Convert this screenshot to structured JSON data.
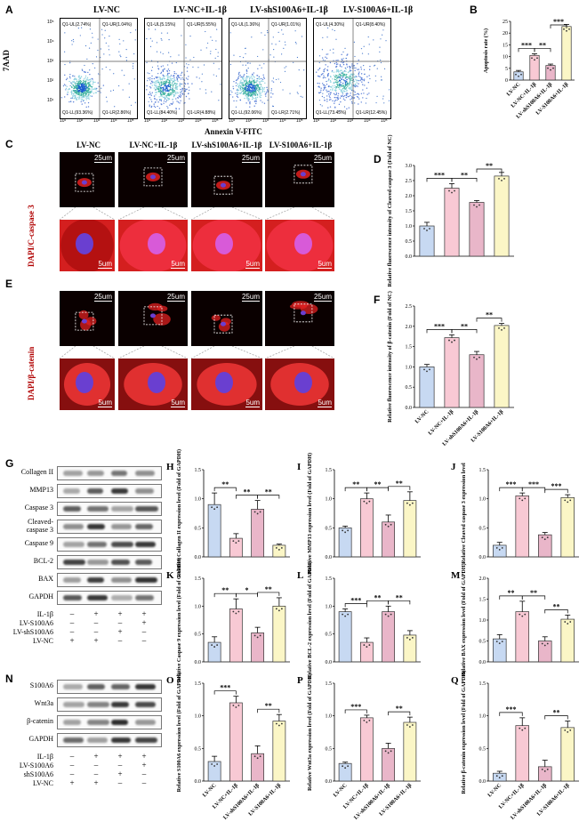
{
  "panel_letters": [
    "A",
    "B",
    "C",
    "D",
    "E",
    "F",
    "G",
    "H",
    "I",
    "J",
    "K",
    "L",
    "M",
    "N",
    "O",
    "P",
    "Q"
  ],
  "groups": [
    "LV-NC",
    "LV-NC+IL-1β",
    "LV-shS100A6+IL-1β",
    "LV-S100A6+IL-1β"
  ],
  "flow": {
    "y_axis": "7AAD",
    "x_axis": "Annexin V-FITC",
    "ticks": [
      "10⁵",
      "10⁴",
      "10³",
      "10²",
      "10¹"
    ],
    "xticks": [
      "10¹",
      "10²",
      "10³",
      "10⁴",
      "10⁵"
    ],
    "quadrants": [
      {
        "ul": "Q1-UL(2.74%)",
        "ur": "Q1-UR(1.04%)",
        "ll": "Q1-LL(93.36%)",
        "lr": "Q1-LR(2.86%)"
      },
      {
        "ul": "Q1-UL(5.15%)",
        "ur": "Q1-UR(5.55%)",
        "ll": "Q1-LL(84.40%)",
        "lr": "Q1-LR(4.88%)"
      },
      {
        "ul": "Q1-UL(1.36%)",
        "ur": "Q1-UR(1.01%)",
        "ll": "Q1-LL(92.06%)",
        "lr": "Q1-LR(2.71%)"
      },
      {
        "ul": "Q1-UL(4.30%)",
        "ur": "Q1-UR(8.40%)",
        "ll": "Q1-LL(73.45%)",
        "lr": "Q1-LR(12.45%)"
      }
    ]
  },
  "micro": {
    "C_side": "DAPI/C-caspase 3",
    "E_side": "DAPI/β-catenin",
    "scale_top": "25um",
    "scale_bottom": "5um",
    "E_groups": [
      "LV-NC",
      "LV-NC+IL-1β",
      "LV-shS100A6+IL-1β",
      "LV-S100A6+IL-1β"
    ]
  },
  "western_G": {
    "labels": [
      "Collagen II",
      "MMP13",
      "Caspase 3",
      "Cleaved-\ncaspase 3",
      "Caspase 9",
      "BCL-2",
      "BAX",
      "GAPDH"
    ],
    "treat_rows": [
      {
        "name": "IL-1β",
        "signs": [
          "–",
          "+",
          "+",
          "+"
        ]
      },
      {
        "name": "LV-S100A6",
        "signs": [
          "–",
          "–",
          "–",
          "+"
        ]
      },
      {
        "name": "LV-shS100A6",
        "signs": [
          "–",
          "–",
          "+",
          "–"
        ]
      },
      {
        "name": "LV-NC",
        "signs": [
          "+",
          "+",
          "–",
          "–"
        ]
      }
    ]
  },
  "western_N": {
    "labels": [
      "S100A6",
      "Wnt3a",
      "β-catenin",
      "GAPDH"
    ],
    "treat_rows": [
      {
        "name": "IL-1β",
        "signs": [
          "–",
          "+",
          "+",
          "+"
        ]
      },
      {
        "name": "LV-S100A6",
        "signs": [
          "–",
          "–",
          "–",
          "+"
        ]
      },
      {
        "name": "shS100A6",
        "signs": [
          "–",
          "–",
          "+",
          "–"
        ]
      },
      {
        "name": "LV-NC",
        "signs": [
          "+",
          "+",
          "–",
          "–"
        ]
      }
    ]
  },
  "colors": {
    "LV-NC": "#c7d9f2",
    "LV-NC+IL-1β": "#f8c9d4",
    "LV-shS100A6+IL-1β": "#e9b6c9",
    "LV-S100A6+IL-1β": "#fbf6c6",
    "micro_bg": "#0a0000",
    "micro_cell": "#e02020",
    "micro_nucleus": "#6a3fd0"
  },
  "chart_data": [
    {
      "panel": "B",
      "type": "bar",
      "categories": [
        "LV-NC",
        "LV-NC+IL-1β",
        "LV-shS100A6+IL-1β",
        "LV-S100A6+IL-1β"
      ],
      "values": [
        3.5,
        10.5,
        6.2,
        22.8
      ],
      "errors": [
        0.6,
        0.7,
        0.6,
        0.9
      ],
      "ylabel": "Apoptosis rate (%)",
      "ylim": [
        0,
        25
      ],
      "yticks": [
        0,
        5,
        10,
        15,
        20,
        25
      ],
      "sig": [
        [
          "***",
          0,
          1
        ],
        [
          "**",
          1,
          2
        ],
        [
          "***",
          2,
          3
        ]
      ],
      "show_xlabels": true
    },
    {
      "panel": "D",
      "type": "bar",
      "categories": [
        "LV-NC",
        "LV-NC+IL-1β",
        "LV-shS100A6+IL-1β",
        "LV-S100A6+IL-1β"
      ],
      "values": [
        1.0,
        2.25,
        1.78,
        2.65
      ],
      "errors": [
        0.12,
        0.15,
        0.06,
        0.12
      ],
      "ylabel": "Relative fluorescence intensity of Cleaved-caspase 3 (Fold of NC)",
      "ylim": [
        0,
        3.0
      ],
      "yticks": [
        0,
        0.5,
        1.0,
        1.5,
        2.0,
        2.5,
        3.0
      ],
      "sig": [
        [
          "***",
          0,
          1
        ],
        [
          "**",
          1,
          2
        ],
        [
          "**",
          2,
          3
        ]
      ],
      "show_xlabels": false
    },
    {
      "panel": "F",
      "type": "bar",
      "categories": [
        "LV-NC",
        "LV-NC+IL-1β",
        "LV-shS100A6+IL-1β",
        "LV-S100A6+IL-1β"
      ],
      "values": [
        1.0,
        1.72,
        1.3,
        2.02
      ],
      "errors": [
        0.06,
        0.07,
        0.08,
        0.05
      ],
      "ylabel": "Relative fluorescence intensity of β-catenin (Fold of NC)",
      "ylim": [
        0,
        2.5
      ],
      "yticks": [
        0,
        0.5,
        1.0,
        1.5,
        2.0,
        2.5
      ],
      "sig": [
        [
          "***",
          0,
          1
        ],
        [
          "**",
          1,
          2
        ],
        [
          "**",
          2,
          3
        ]
      ],
      "show_xlabels": true
    },
    {
      "panel": "H",
      "type": "bar",
      "categories": [
        "LV-NC",
        "LV-NC+IL-1β",
        "LV-shS100A6+IL-1β",
        "LV-S100A6+IL-1β"
      ],
      "values": [
        0.9,
        0.32,
        0.82,
        0.2
      ],
      "errors": [
        0.2,
        0.08,
        0.15,
        0.02
      ],
      "ylabel": "Relative Collagen II expression level (Fold of GAPDH)",
      "ylim": [
        0,
        1.5
      ],
      "yticks": [
        0.0,
        0.5,
        1.0,
        1.5
      ],
      "sig": [
        [
          "**",
          0,
          1
        ],
        [
          "**",
          1,
          2
        ],
        [
          "**",
          2,
          3
        ]
      ],
      "show_xlabels": false
    },
    {
      "panel": "I",
      "type": "bar",
      "categories": [
        "LV-NC",
        "LV-NC+IL-1β",
        "LV-shS100A6+IL-1β",
        "LV-S100A6+IL-1β"
      ],
      "values": [
        0.5,
        1.0,
        0.6,
        0.97
      ],
      "errors": [
        0.03,
        0.1,
        0.12,
        0.15
      ],
      "ylabel": "Relative MMP13 expression level (Fold of GAPDH)",
      "ylim": [
        0,
        1.5
      ],
      "yticks": [
        0.0,
        0.5,
        1.0,
        1.5
      ],
      "sig": [
        [
          "**",
          0,
          1
        ],
        [
          "**",
          1,
          2
        ],
        [
          "**",
          2,
          3
        ]
      ],
      "show_xlabels": false
    },
    {
      "panel": "J",
      "type": "bar",
      "categories": [
        "LV-NC",
        "LV-NC+IL-1β",
        "LV-shS100A6+IL-1β",
        "LV-S100A6+IL-1β"
      ],
      "values": [
        0.2,
        1.05,
        0.38,
        1.02
      ],
      "errors": [
        0.05,
        0.05,
        0.04,
        0.05
      ],
      "ylabel": "Relative Cleaved caspase 3 expression level",
      "ylim": [
        0,
        1.5
      ],
      "yticks": [
        0.0,
        0.5,
        1.0,
        1.5
      ],
      "sig": [
        [
          "***",
          0,
          1
        ],
        [
          "***",
          1,
          2
        ],
        [
          "***",
          2,
          3
        ]
      ],
      "show_xlabels": false
    },
    {
      "panel": "K",
      "type": "bar",
      "categories": [
        "LV-NC",
        "LV-NC+IL-1β",
        "LV-shS100A6+IL-1β",
        "LV-S100A6+IL-1β"
      ],
      "values": [
        0.35,
        0.95,
        0.52,
        1.0
      ],
      "errors": [
        0.1,
        0.18,
        0.1,
        0.15
      ],
      "ylabel": "Relative Caspase 9 expression level (Fold of GAPDH)",
      "ylim": [
        0,
        1.5
      ],
      "yticks": [
        0.0,
        0.5,
        1.0,
        1.5
      ],
      "sig": [
        [
          "**",
          0,
          1
        ],
        [
          "*",
          1,
          2
        ],
        [
          "**",
          2,
          3
        ]
      ],
      "show_xlabels": false
    },
    {
      "panel": "L",
      "type": "bar",
      "categories": [
        "LV-NC",
        "LV-NC+IL-1β",
        "LV-shS100A6+IL-1β",
        "LV-S100A6+IL-1β"
      ],
      "values": [
        0.9,
        0.35,
        0.9,
        0.48
      ],
      "errors": [
        0.05,
        0.08,
        0.1,
        0.08
      ],
      "ylabel": "Relative BCL-2 expression level (Fold of GAPDH)",
      "ylim": [
        0,
        1.5
      ],
      "yticks": [
        0.0,
        0.5,
        1.0,
        1.5
      ],
      "sig": [
        [
          "***",
          0,
          1
        ],
        [
          "**",
          1,
          2
        ],
        [
          "**",
          2,
          3
        ]
      ],
      "show_xlabels": false
    },
    {
      "panel": "M",
      "type": "bar",
      "categories": [
        "LV-NC",
        "LV-NC+IL-1β",
        "LV-shS100A6+IL-1β",
        "LV-S100A6+IL-1β"
      ],
      "values": [
        0.55,
        1.2,
        0.5,
        1.02
      ],
      "errors": [
        0.1,
        0.25,
        0.1,
        0.1
      ],
      "ylabel": "Relative BAX expression level (Fold of GAPDH)",
      "ylim": [
        0,
        2.0
      ],
      "yticks": [
        0.0,
        0.5,
        1.0,
        1.5,
        2.0
      ],
      "sig": [
        [
          "**",
          0,
          1
        ],
        [
          "**",
          1,
          2
        ],
        [
          "**",
          2,
          3
        ]
      ],
      "show_xlabels": false
    },
    {
      "panel": "O",
      "type": "bar",
      "categories": [
        "LV-NC",
        "LV-NC+IL-1β",
        "LV-shS100A6+IL-1β",
        "LV-S100A6+IL-1β"
      ],
      "values": [
        0.3,
        1.2,
        0.42,
        0.92
      ],
      "errors": [
        0.08,
        0.1,
        0.12,
        0.1
      ],
      "ylabel": "Relative S100A6 expression level (Fold of GAPDH)",
      "ylim": [
        0,
        1.5
      ],
      "yticks": [
        0.0,
        0.5,
        1.0,
        1.5
      ],
      "sig": [
        [
          "***",
          0,
          1
        ],
        [
          "**",
          2,
          3
        ]
      ],
      "show_xlabels": true
    },
    {
      "panel": "P",
      "type": "bar",
      "categories": [
        "LV-NC",
        "LV-NC+IL-1β",
        "LV-shS100A6+IL-1β",
        "LV-S100A6+IL-1β"
      ],
      "values": [
        0.27,
        0.97,
        0.5,
        0.9
      ],
      "errors": [
        0.02,
        0.04,
        0.08,
        0.08
      ],
      "ylabel": "Relative Wnt3a expression level (Fold of GAPDH)",
      "ylim": [
        0,
        1.5
      ],
      "yticks": [
        0.0,
        0.5,
        1.0,
        1.5
      ],
      "sig": [
        [
          "***",
          0,
          1
        ],
        [
          "**",
          2,
          3
        ]
      ],
      "show_xlabels": true
    },
    {
      "panel": "Q",
      "type": "bar",
      "categories": [
        "LV-NC",
        "LV-NC+IL-1β",
        "LV-shS100A6+IL-1β",
        "LV-S100A6+IL-1β"
      ],
      "values": [
        0.12,
        0.85,
        0.22,
        0.82
      ],
      "errors": [
        0.03,
        0.12,
        0.1,
        0.1
      ],
      "ylabel": "Relative β-catenin expression level (Fold of GAPDH)",
      "ylim": [
        0,
        1.5
      ],
      "yticks": [
        0.0,
        0.5,
        1.0,
        1.5
      ],
      "sig": [
        [
          "***",
          0,
          1
        ],
        [
          "**",
          2,
          3
        ]
      ],
      "show_xlabels": true
    }
  ]
}
